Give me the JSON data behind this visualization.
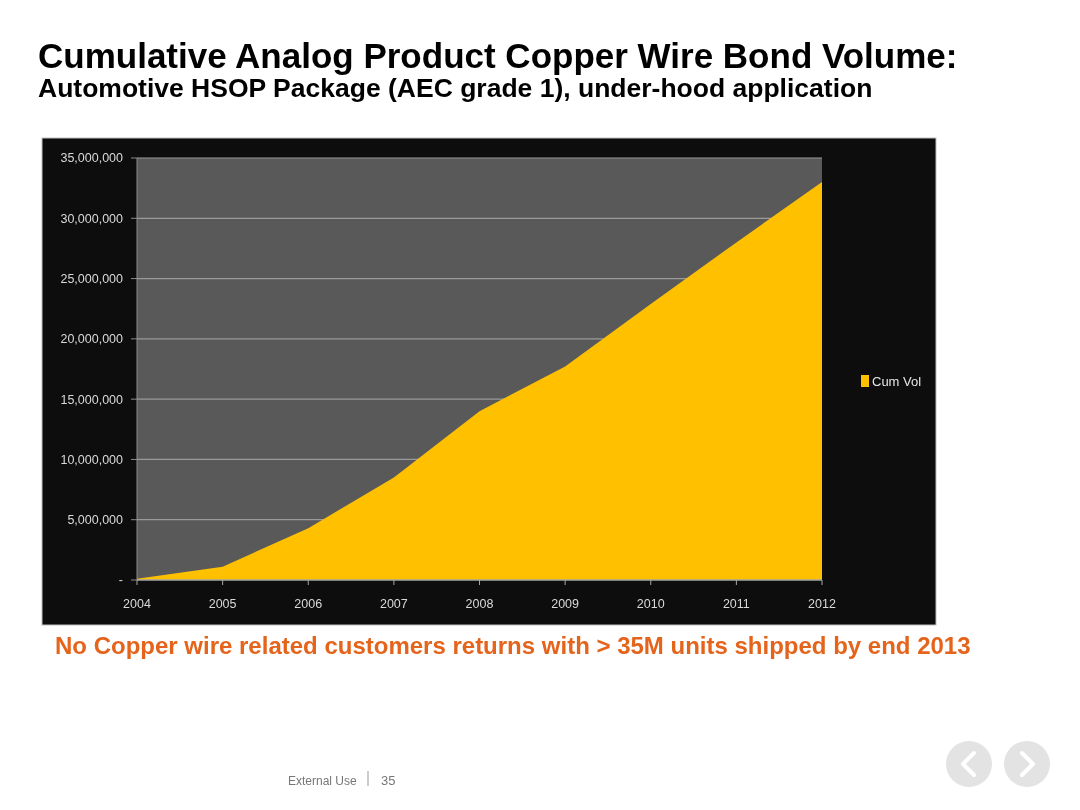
{
  "chart_data": {
    "type": "area",
    "title": "Cumulative Analog Product Copper Wire Bond Volume:",
    "subtitle": "Automotive HSOP Package (AEC grade 1), under-hood application",
    "categories": [
      "2004",
      "2005",
      "2006",
      "2007",
      "2008",
      "2009",
      "2010",
      "2011",
      "2012"
    ],
    "series": [
      {
        "name": "Cum Vol",
        "color": "#ffc000",
        "values": [
          100000,
          1100000,
          4300000,
          8500000,
          14000000,
          17700000,
          22900000,
          28000000,
          33000000
        ]
      }
    ],
    "ylim": [
      0,
      35000000
    ],
    "yticks": [
      {
        "value": 0,
        "label": "-"
      },
      {
        "value": 5000000,
        "label": "5,000,000"
      },
      {
        "value": 10000000,
        "label": "10,000,000"
      },
      {
        "value": 15000000,
        "label": "15,000,000"
      },
      {
        "value": 20000000,
        "label": "20,000,000"
      },
      {
        "value": 25000000,
        "label": "25,000,000"
      },
      {
        "value": 30000000,
        "label": "30,000,000"
      },
      {
        "value": 35000000,
        "label": "35,000,000"
      }
    ],
    "grid": "y",
    "legend": "right",
    "annotations": [
      "No Copper wire related customers returns with > 35M units shipped by end 2013",
      "External Use",
      "35"
    ]
  }
}
